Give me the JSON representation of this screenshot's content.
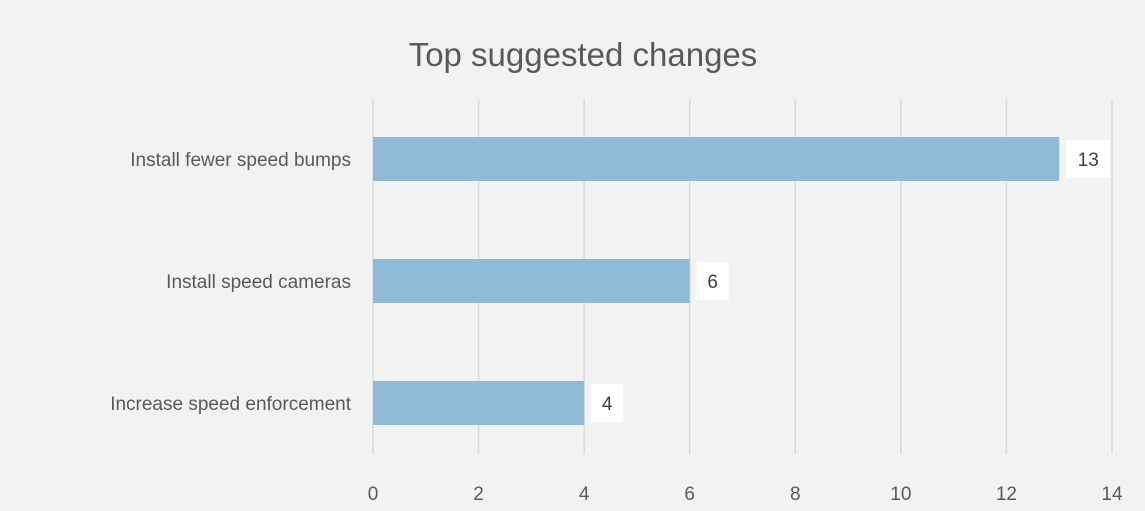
{
  "colors": {
    "background": "#f2f2f2",
    "bar": "#8fbbd9",
    "gridline": "#d9d9d9",
    "text": "#595959",
    "data_label_box": "#ffffff"
  },
  "chart_data": {
    "type": "bar",
    "orientation": "horizontal",
    "title": "Top suggested changes",
    "categories": [
      "Install fewer speed bumps",
      "Install speed cameras",
      "Increase speed enforcement"
    ],
    "values": [
      13,
      6,
      4
    ],
    "xlim": [
      0,
      14
    ],
    "xticks": [
      0,
      2,
      4,
      6,
      8,
      10,
      12,
      14
    ],
    "grid": true,
    "legend": "none",
    "data_labels": true
  }
}
